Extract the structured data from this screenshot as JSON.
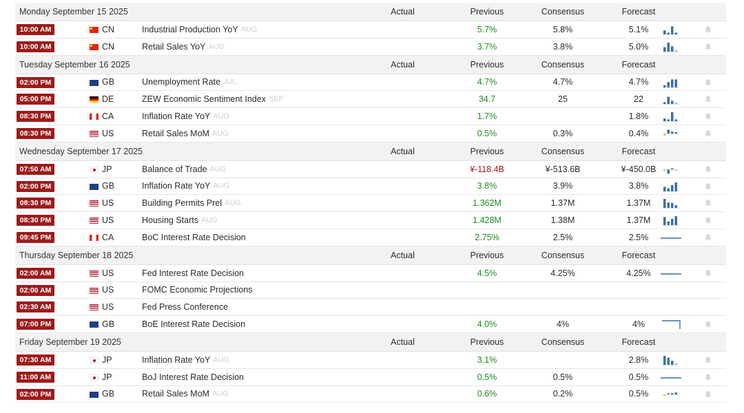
{
  "columns": {
    "actual": "Actual",
    "previous": "Previous",
    "consensus": "Consensus",
    "forecast": "Forecast"
  },
  "colors": {
    "time_badge": "#9e1b1b",
    "positive": "#1e8a1e",
    "negative": "#b0151b",
    "spark": "#3a6ea5"
  },
  "days": [
    {
      "title": "Monday September 15 2025",
      "events": [
        {
          "time": "10:00 AM",
          "country": "CN",
          "name": "Industrial Production YoY",
          "period": "AUG",
          "previous": "5.7%",
          "previous_color": "green",
          "consensus": "5.8%",
          "forecast": "5.1%",
          "spark": [
            0.45,
            0.2,
            0.9,
            0.2
          ],
          "spark_style": "bars",
          "icon": "bell-icon"
        },
        {
          "time": "10:00 AM",
          "country": "CN",
          "name": "Retail Sales YoY",
          "period": "AUG",
          "previous": "3.7%",
          "previous_color": "green",
          "consensus": "3.8%",
          "forecast": "5.0%",
          "spark": [
            0.5,
            1.0,
            0.6,
            0.15
          ],
          "spark_style": "bars",
          "icon": "bell-icon"
        }
      ]
    },
    {
      "title": "Tuesday September 16 2025",
      "events": [
        {
          "time": "02:00 PM",
          "country": "GB",
          "name": "Unemployment Rate",
          "period": "JUL",
          "previous": "4.7%",
          "previous_color": "green",
          "consensus": "4.7%",
          "forecast": "4.7%",
          "spark": [
            0.25,
            0.6,
            0.9,
            0.9
          ],
          "spark_style": "bars",
          "icon": "bell-icon"
        },
        {
          "time": "05:00 PM",
          "country": "DE",
          "name": "ZEW Economic Sentiment Index",
          "period": "SEP",
          "previous": "34.7",
          "previous_color": "green",
          "consensus": "25",
          "forecast": "22",
          "spark": [
            0.2,
            0.8,
            0.35,
            0.15
          ],
          "spark_style": "bars",
          "icon": "bell-icon"
        },
        {
          "time": "08:30 PM",
          "country": "CA",
          "name": "Inflation Rate YoY",
          "period": "AUG",
          "previous": "1.7%",
          "previous_color": "green",
          "consensus": "",
          "forecast": "1.8%",
          "spark": [
            0.3,
            0.2,
            1.0,
            0.2
          ],
          "spark_style": "bars",
          "icon": "bell-icon"
        },
        {
          "time": "08:30 PM",
          "country": "US",
          "name": "Retail Sales MoM",
          "period": "AUG",
          "previous": "0.5%",
          "previous_color": "green",
          "consensus": "0.3%",
          "forecast": "0.4%",
          "spark": [
            -0.4,
            0.8,
            0.4,
            0.3
          ],
          "spark_style": "bars",
          "icon": "bell-icon"
        }
      ]
    },
    {
      "title": "Wednesday September 17 2025",
      "events": [
        {
          "time": "07:50 AM",
          "country": "JP",
          "name": "Balance of Trade",
          "period": "AUG",
          "previous": "¥-118.4B",
          "previous_color": "red",
          "consensus": "¥-513.6B",
          "forecast": "¥-450.0B",
          "spark": [
            -0.3,
            -0.9,
            0.15,
            -0.1
          ],
          "spark_style": "bars",
          "icon": "bell-icon"
        },
        {
          "time": "02:00 PM",
          "country": "GB",
          "name": "Inflation Rate YoY",
          "period": "AUG",
          "previous": "3.8%",
          "previous_color": "green",
          "consensus": "3.9%",
          "forecast": "3.8%",
          "spark": [
            0.5,
            0.35,
            0.7,
            1.0
          ],
          "spark_style": "bars",
          "icon": "bell-icon"
        },
        {
          "time": "08:30 PM",
          "country": "US",
          "name": "Building Permits Prel",
          "period": "AUG",
          "previous": "1.362M",
          "previous_color": "green",
          "consensus": "1.37M",
          "forecast": "1.37M",
          "spark": [
            1.0,
            0.6,
            0.55,
            0.3
          ],
          "spark_style": "bars",
          "icon": "bell-icon"
        },
        {
          "time": "08:30 PM",
          "country": "US",
          "name": "Housing Starts",
          "period": "AUG",
          "previous": "1.428M",
          "previous_color": "green",
          "consensus": "1.38M",
          "forecast": "1.37M",
          "spark": [
            0.9,
            0.4,
            0.7,
            1.0
          ],
          "spark_style": "bars",
          "icon": "bell-icon"
        },
        {
          "time": "09:45 PM",
          "country": "CA",
          "name": "BoC Interest Rate Decision",
          "period": "",
          "previous": "2.75%",
          "previous_color": "green",
          "consensus": "2.5%",
          "forecast": "2.5%",
          "spark": [
            0.5,
            0.5,
            0.5,
            0.5
          ],
          "spark_style": "line",
          "icon": "bell-icon"
        }
      ]
    },
    {
      "title": "Thursday September 18 2025",
      "events": [
        {
          "time": "02:00 AM",
          "country": "US",
          "name": "Fed Interest Rate Decision",
          "period": "",
          "previous": "4.5%",
          "previous_color": "green",
          "consensus": "4.25%",
          "forecast": "4.25%",
          "spark": [
            0.5,
            0.5,
            0.5,
            0.5
          ],
          "spark_style": "line",
          "icon": "bell-icon"
        },
        {
          "time": "02:00 AM",
          "country": "US",
          "name": "FOMC Economic Projections",
          "period": "",
          "previous": "",
          "previous_color": "green",
          "consensus": "",
          "forecast": "",
          "spark": [],
          "spark_style": "none",
          "icon": ""
        },
        {
          "time": "02:30 AM",
          "country": "US",
          "name": "Fed Press Conference",
          "period": "",
          "previous": "",
          "previous_color": "green",
          "consensus": "",
          "forecast": "",
          "spark": [],
          "spark_style": "none",
          "icon": ""
        },
        {
          "time": "07:00 PM",
          "country": "GB",
          "name": "BoE Interest Rate Decision",
          "period": "",
          "previous": "4.0%",
          "previous_color": "green",
          "consensus": "4%",
          "forecast": "4%",
          "spark": [
            1.0,
            1.0,
            1.0,
            0.2
          ],
          "spark_style": "step",
          "icon": "bell-icon"
        }
      ]
    },
    {
      "title": "Friday September 19 2025",
      "events": [
        {
          "time": "07:30 AM",
          "country": "JP",
          "name": "Inflation Rate YoY",
          "period": "AUG",
          "previous": "3.1%",
          "previous_color": "green",
          "consensus": "",
          "forecast": "2.8%",
          "spark": [
            1.0,
            0.8,
            0.45,
            0.15
          ],
          "spark_style": "bars",
          "icon": "bell-icon"
        },
        {
          "time": "11:00 AM",
          "country": "JP",
          "name": "BoJ Interest Rate Decision",
          "period": "",
          "previous": "0.5%",
          "previous_color": "green",
          "consensus": "0.5%",
          "forecast": "0.5%",
          "spark": [
            0.5,
            0.5,
            0.5,
            0.5
          ],
          "spark_style": "line",
          "icon": "bell-icon"
        },
        {
          "time": "02:00 PM",
          "country": "GB",
          "name": "Retail Sales MoM",
          "period": "AUG",
          "previous": "0.6%",
          "previous_color": "green",
          "consensus": "0.2%",
          "forecast": "0.5%",
          "spark": [
            -0.3,
            0.15,
            0.25,
            0.4
          ],
          "spark_style": "bars",
          "icon": "bell-icon"
        }
      ]
    }
  ]
}
